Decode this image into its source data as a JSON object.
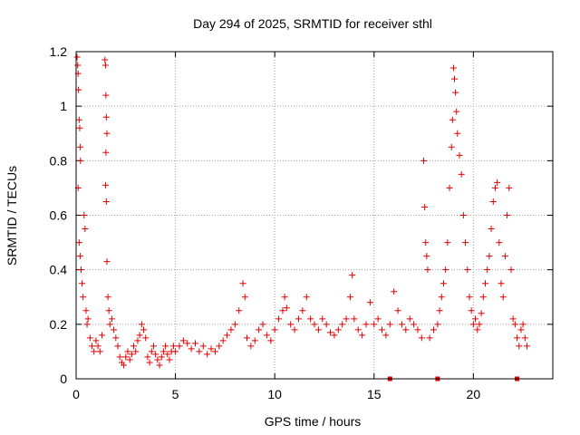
{
  "chart_data": {
    "type": "scatter",
    "title": "Day 294 of 2025, SRMTID for receiver sthl",
    "xlabel": "GPS time / hours",
    "ylabel": "SRMTID / TECUs",
    "xlim": [
      0,
      24
    ],
    "ylim": [
      0,
      1.2
    ],
    "xticks": [
      0,
      5,
      10,
      15,
      20
    ],
    "xtick_labels": [
      "0",
      "5",
      "10",
      "15",
      "20"
    ],
    "yticks": [
      0,
      0.2,
      0.4,
      0.6,
      0.8,
      1,
      1.2
    ],
    "ytick_labels": [
      "0",
      "0.2",
      "0.4",
      "0.6",
      "0.8",
      "1",
      "1.2"
    ],
    "grid": true,
    "marker": "+",
    "color": "#e00000",
    "series": [
      {
        "name": "SRMTID",
        "points": [
          [
            0.05,
            1.18
          ],
          [
            0.08,
            1.15
          ],
          [
            0.1,
            1.12
          ],
          [
            0.12,
            1.06
          ],
          [
            0.15,
            0.95
          ],
          [
            0.18,
            0.92
          ],
          [
            0.2,
            0.85
          ],
          [
            0.22,
            0.8
          ],
          [
            0.1,
            0.7
          ],
          [
            0.15,
            0.5
          ],
          [
            0.2,
            0.45
          ],
          [
            0.25,
            0.4
          ],
          [
            0.3,
            0.35
          ],
          [
            0.35,
            0.3
          ],
          [
            0.4,
            0.6
          ],
          [
            0.45,
            0.55
          ],
          [
            0.5,
            0.25
          ],
          [
            0.55,
            0.2
          ],
          [
            0.6,
            0.22
          ],
          [
            0.7,
            0.15
          ],
          [
            0.8,
            0.12
          ],
          [
            0.9,
            0.1
          ],
          [
            1.0,
            0.14
          ],
          [
            1.1,
            0.12
          ],
          [
            1.2,
            0.1
          ],
          [
            1.3,
            0.16
          ],
          [
            1.45,
            1.17
          ],
          [
            1.48,
            1.15
          ],
          [
            1.5,
            1.04
          ],
          [
            1.52,
            0.96
          ],
          [
            1.55,
            0.9
          ],
          [
            1.5,
            0.83
          ],
          [
            1.48,
            0.71
          ],
          [
            1.52,
            0.65
          ],
          [
            1.55,
            0.43
          ],
          [
            1.6,
            0.3
          ],
          [
            1.65,
            0.25
          ],
          [
            1.7,
            0.2
          ],
          [
            1.8,
            0.22
          ],
          [
            1.9,
            0.18
          ],
          [
            2.0,
            0.15
          ],
          [
            2.1,
            0.12
          ],
          [
            2.2,
            0.08
          ],
          [
            2.3,
            0.06
          ],
          [
            2.4,
            0.05
          ],
          [
            2.5,
            0.08
          ],
          [
            2.6,
            0.1
          ],
          [
            2.7,
            0.07
          ],
          [
            2.8,
            0.09
          ],
          [
            2.9,
            0.12
          ],
          [
            3.0,
            0.1
          ],
          [
            3.1,
            0.14
          ],
          [
            3.2,
            0.16
          ],
          [
            3.3,
            0.2
          ],
          [
            3.4,
            0.18
          ],
          [
            3.5,
            0.15
          ],
          [
            3.6,
            0.08
          ],
          [
            3.7,
            0.06
          ],
          [
            3.8,
            0.1
          ],
          [
            3.9,
            0.12
          ],
          [
            4.0,
            0.09
          ],
          [
            4.1,
            0.07
          ],
          [
            4.2,
            0.05
          ],
          [
            4.3,
            0.08
          ],
          [
            4.4,
            0.1
          ],
          [
            4.5,
            0.12
          ],
          [
            4.6,
            0.09
          ],
          [
            4.7,
            0.07
          ],
          [
            4.8,
            0.1
          ],
          [
            4.9,
            0.12
          ],
          [
            5.0,
            0.1
          ],
          [
            5.2,
            0.12
          ],
          [
            5.4,
            0.14
          ],
          [
            5.6,
            0.13
          ],
          [
            5.8,
            0.11
          ],
          [
            6.0,
            0.13
          ],
          [
            6.2,
            0.1
          ],
          [
            6.4,
            0.12
          ],
          [
            6.6,
            0.09
          ],
          [
            6.8,
            0.11
          ],
          [
            7.0,
            0.1
          ],
          [
            7.2,
            0.12
          ],
          [
            7.4,
            0.14
          ],
          [
            7.6,
            0.16
          ],
          [
            7.8,
            0.18
          ],
          [
            8.0,
            0.2
          ],
          [
            8.2,
            0.25
          ],
          [
            8.4,
            0.35
          ],
          [
            8.5,
            0.3
          ],
          [
            8.6,
            0.15
          ],
          [
            8.8,
            0.12
          ],
          [
            9.0,
            0.14
          ],
          [
            9.2,
            0.18
          ],
          [
            9.4,
            0.2
          ],
          [
            9.6,
            0.16
          ],
          [
            9.8,
            0.14
          ],
          [
            10.0,
            0.18
          ],
          [
            10.2,
            0.22
          ],
          [
            10.4,
            0.25
          ],
          [
            10.5,
            0.3
          ],
          [
            10.6,
            0.26
          ],
          [
            10.8,
            0.2
          ],
          [
            11.0,
            0.18
          ],
          [
            11.2,
            0.22
          ],
          [
            11.4,
            0.25
          ],
          [
            11.6,
            0.3
          ],
          [
            11.8,
            0.22
          ],
          [
            12.0,
            0.2
          ],
          [
            12.2,
            0.18
          ],
          [
            12.4,
            0.22
          ],
          [
            12.6,
            0.2
          ],
          [
            12.8,
            0.17
          ],
          [
            13.0,
            0.16
          ],
          [
            13.2,
            0.18
          ],
          [
            13.4,
            0.2
          ],
          [
            13.6,
            0.22
          ],
          [
            13.8,
            0.3
          ],
          [
            13.9,
            0.38
          ],
          [
            14.0,
            0.22
          ],
          [
            14.2,
            0.18
          ],
          [
            14.4,
            0.16
          ],
          [
            14.6,
            0.2
          ],
          [
            14.8,
            0.28
          ],
          [
            15.0,
            0.2
          ],
          [
            15.2,
            0.22
          ],
          [
            15.4,
            0.18
          ],
          [
            15.6,
            0.16
          ],
          [
            15.8,
            0.2
          ],
          [
            16.0,
            0.32
          ],
          [
            16.2,
            0.25
          ],
          [
            16.4,
            0.2
          ],
          [
            16.6,
            0.18
          ],
          [
            16.8,
            0.22
          ],
          [
            17.0,
            0.2
          ],
          [
            17.2,
            0.18
          ],
          [
            17.4,
            0.15
          ],
          [
            17.5,
            0.8
          ],
          [
            17.55,
            0.63
          ],
          [
            17.6,
            0.5
          ],
          [
            17.65,
            0.45
          ],
          [
            17.7,
            0.4
          ],
          [
            17.8,
            0.15
          ],
          [
            18.0,
            0.18
          ],
          [
            18.2,
            0.2
          ],
          [
            18.3,
            0.25
          ],
          [
            18.4,
            0.3
          ],
          [
            18.5,
            0.35
          ],
          [
            18.6,
            0.4
          ],
          [
            18.7,
            0.5
          ],
          [
            18.8,
            0.7
          ],
          [
            18.9,
            0.85
          ],
          [
            18.95,
            0.95
          ],
          [
            19.0,
            1.14
          ],
          [
            19.05,
            1.1
          ],
          [
            19.1,
            1.05
          ],
          [
            19.15,
            0.98
          ],
          [
            19.2,
            0.9
          ],
          [
            19.3,
            0.82
          ],
          [
            19.4,
            0.75
          ],
          [
            19.5,
            0.6
          ],
          [
            19.6,
            0.5
          ],
          [
            19.7,
            0.4
          ],
          [
            19.8,
            0.3
          ],
          [
            19.9,
            0.25
          ],
          [
            20.0,
            0.2
          ],
          [
            20.1,
            0.22
          ],
          [
            20.2,
            0.18
          ],
          [
            20.3,
            0.2
          ],
          [
            20.4,
            0.24
          ],
          [
            20.5,
            0.3
          ],
          [
            20.6,
            0.35
          ],
          [
            20.7,
            0.4
          ],
          [
            20.8,
            0.45
          ],
          [
            20.9,
            0.55
          ],
          [
            21.0,
            0.65
          ],
          [
            21.1,
            0.7
          ],
          [
            21.2,
            0.72
          ],
          [
            21.3,
            0.5
          ],
          [
            21.4,
            0.35
          ],
          [
            21.5,
            0.3
          ],
          [
            21.6,
            0.45
          ],
          [
            21.7,
            0.6
          ],
          [
            21.8,
            0.7
          ],
          [
            21.9,
            0.4
          ],
          [
            22.0,
            0.22
          ],
          [
            22.1,
            0.2
          ],
          [
            22.2,
            0.15
          ],
          [
            22.3,
            0.12
          ],
          [
            22.4,
            0.18
          ],
          [
            22.5,
            0.2
          ],
          [
            22.6,
            0.15
          ],
          [
            22.7,
            0.12
          ]
        ]
      }
    ],
    "axis_markers_x": [
      15.8,
      18.2,
      22.2
    ]
  }
}
